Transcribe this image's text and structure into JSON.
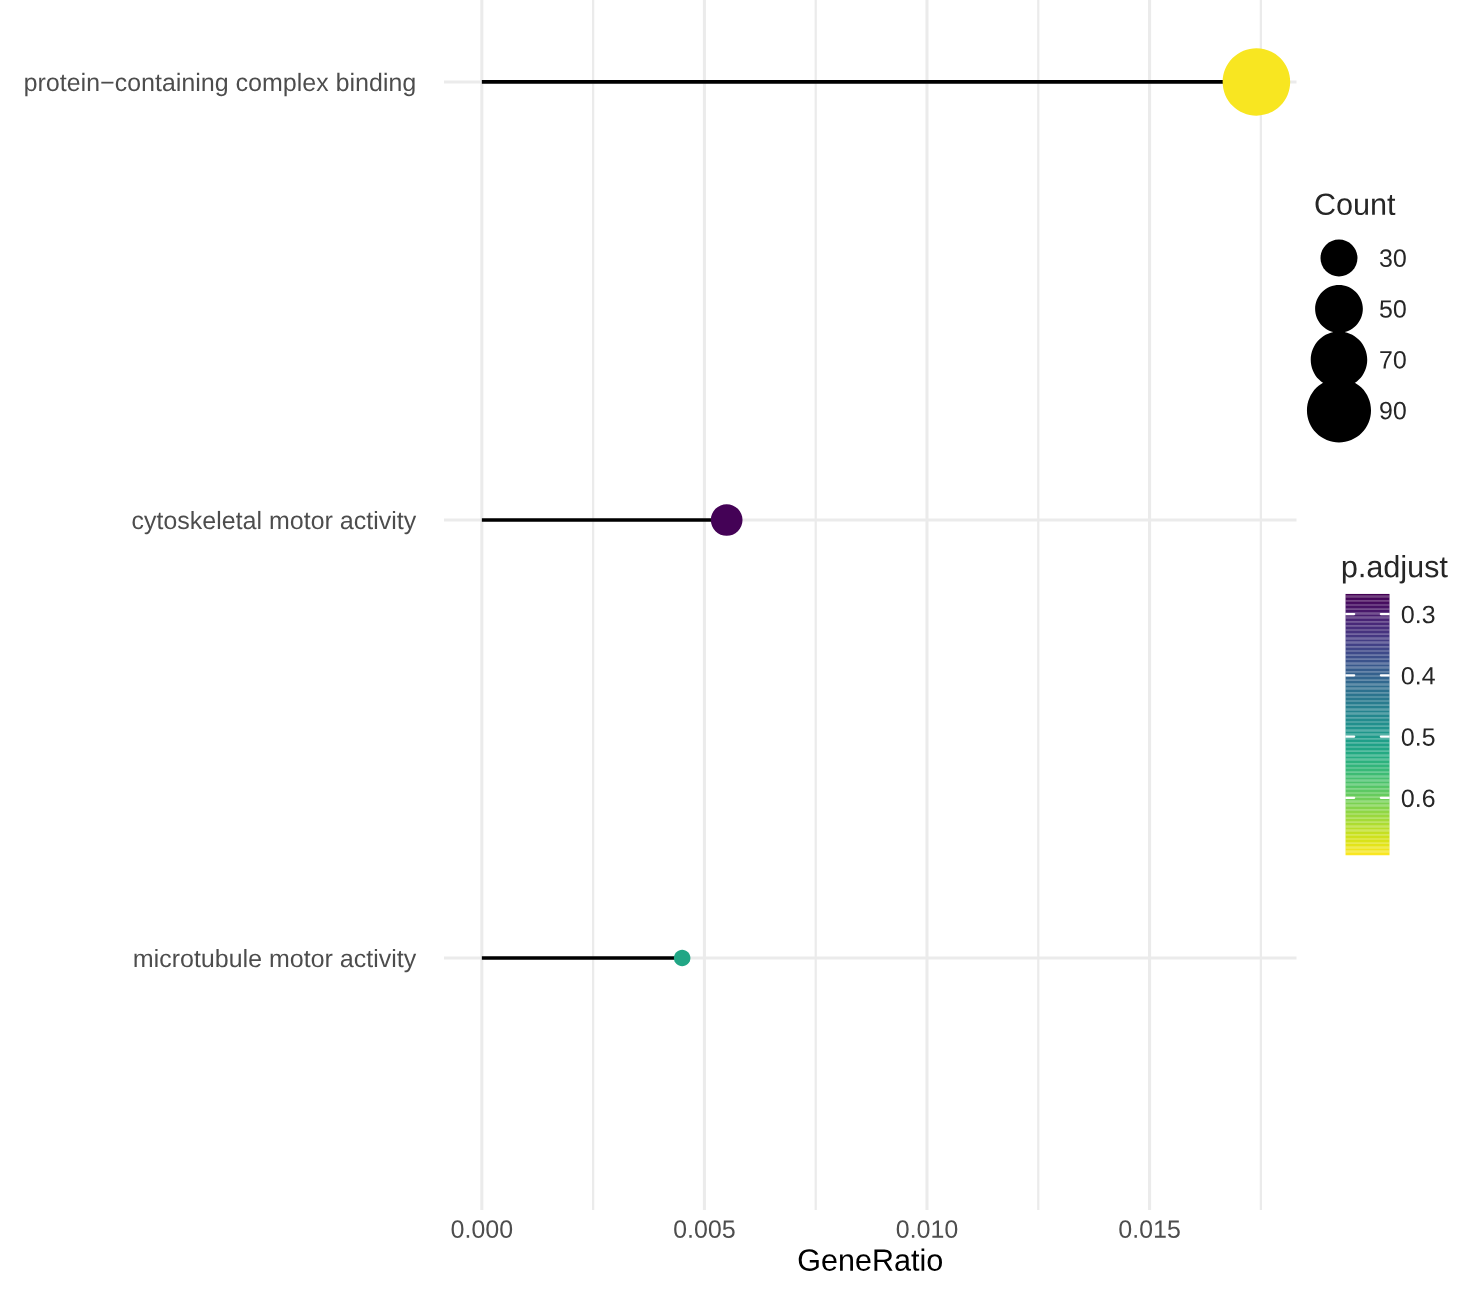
{
  "chart_data": {
    "type": "lollipop",
    "xlabel": "GeneRatio",
    "legend_title": "Count",
    "clabel": "p.adjust",
    "categories": [
      "protein−containing complex binding",
      "cytoskeletal motor activity",
      "microtubule motor activity"
    ],
    "values": [
      0.0174,
      0.0055,
      0.0045
    ],
    "sizes": [
      100,
      22,
      6
    ],
    "size_legend": [
      {
        "value": 30,
        "label": "30"
      },
      {
        "value": 50,
        "label": "50"
      },
      {
        "value": 70,
        "label": "70"
      },
      {
        "value": 90,
        "label": "90"
      }
    ],
    "orientation": "horizontal",
    "cvalues": [
      0.69,
      0.27,
      0.52
    ],
    "clim": [
      0.267,
      0.694
    ],
    "cticks": [
      {
        "value": 0.3,
        "label": "0.3"
      },
      {
        "value": 0.4,
        "label": "0.4"
      },
      {
        "value": 0.5,
        "label": "0.5"
      },
      {
        "value": 0.6,
        "label": "0.6"
      }
    ],
    "xlim": [
      -0.00085,
      0.0183
    ],
    "xticks": [
      {
        "value": 0,
        "label": "0.000"
      },
      {
        "value": 0.005,
        "label": "0.005"
      },
      {
        "value": 0.01,
        "label": "0.010"
      },
      {
        "value": 0.015,
        "label": "0.015"
      }
    ],
    "grid": true
  }
}
